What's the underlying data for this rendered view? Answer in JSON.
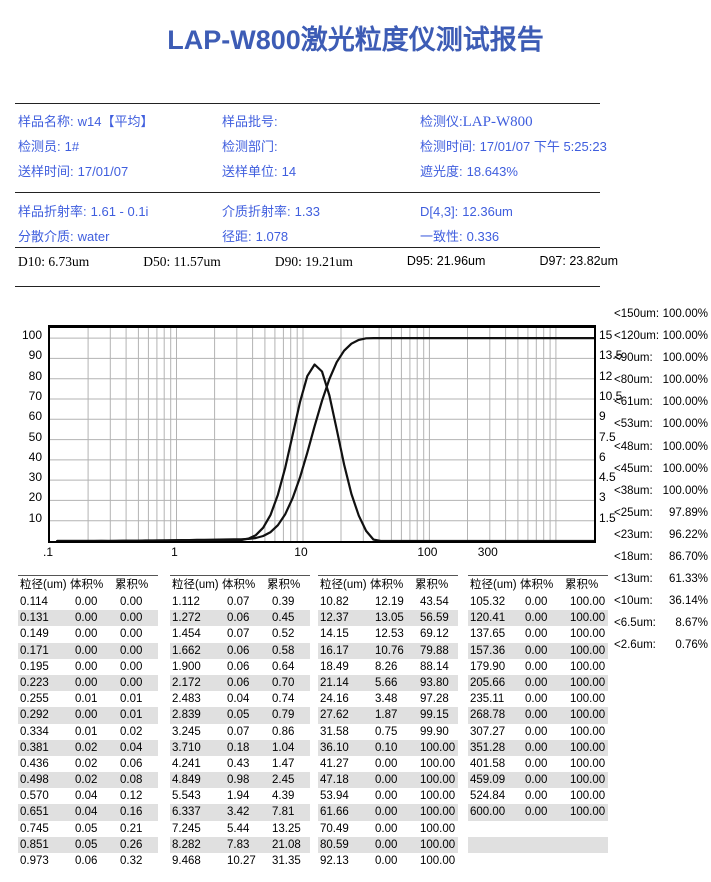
{
  "title": "LAP-W800激光粒度仪测试报告",
  "colors": {
    "title_blue": "#3d5cb5",
    "info_blue": "#3f5ede",
    "stripe_gray": "#e0e0e0"
  },
  "info1": [
    {
      "items": [
        {
          "label": "样品名称:",
          "value": "w14【平均】"
        },
        {
          "label": "检测员:",
          "value": "1#"
        },
        {
          "label": "送样时间:",
          "value": "17/01/07"
        }
      ]
    },
    {
      "items": [
        {
          "label": "样品批号:",
          "value": ""
        },
        {
          "label": "检测部门:",
          "value": ""
        },
        {
          "label": "送样单位:",
          "value": "14"
        }
      ]
    },
    {
      "items": [
        {
          "label": "检测仪:",
          "value": "LAP-W800"
        },
        {
          "label": "检测时间:",
          "value": "17/01/07 下午 5:25:23"
        },
        {
          "label": "遮光度:",
          "value": "18.643%"
        }
      ]
    }
  ],
  "info2": [
    {
      "items": [
        {
          "label": "样品折射率:",
          "value": "1.61 - 0.1i"
        },
        {
          "label": "分散介质:",
          "value": "water"
        }
      ]
    },
    {
      "items": [
        {
          "label": "介质折射率:",
          "value": "1.33"
        },
        {
          "label": "径距:",
          "value": "1.078"
        }
      ]
    },
    {
      "items": [
        {
          "label": "D[4,3]:",
          "value": "12.36um"
        },
        {
          "label": "一致性:",
          "value": "0.336"
        }
      ]
    }
  ],
  "d_values": [
    {
      "label": "D10:",
      "value": "6.73um"
    },
    {
      "label": "D50:",
      "value": "11.57um"
    },
    {
      "label": "D90:",
      "value": "19.21um"
    },
    {
      "label": "D95:",
      "value": "21.96um"
    },
    {
      "label": "D97:",
      "value": "23.82um"
    }
  ],
  "thresholds": [
    {
      "label": "<150um:",
      "value": "100.00%"
    },
    {
      "label": "<120um:",
      "value": "100.00%"
    },
    {
      "label": "<90um:",
      "value": "100.00%"
    },
    {
      "label": "<80um:",
      "value": "100.00%"
    },
    {
      "label": "<61um:",
      "value": "100.00%"
    },
    {
      "label": "<53um:",
      "value": "100.00%"
    },
    {
      "label": "<48um:",
      "value": "100.00%"
    },
    {
      "label": "<45um:",
      "value": "100.00%"
    },
    {
      "label": "<38um:",
      "value": "100.00%"
    },
    {
      "label": "<25um:",
      "value": "97.89%"
    },
    {
      "label": "<23um:",
      "value": "96.22%"
    },
    {
      "label": "<18um:",
      "value": "86.70%"
    },
    {
      "label": "<13um:",
      "value": "61.33%"
    },
    {
      "label": "<10um:",
      "value": "36.14%"
    },
    {
      "label": "<6.5um:",
      "value": "8.67%"
    },
    {
      "label": "<2.6um:",
      "value": "0.76%"
    }
  ],
  "chart_data": {
    "type": "line",
    "x_scale": "log",
    "x_range": [
      0.1,
      2000
    ],
    "x_ticks": [
      {
        "label": ".1",
        "value": 0.1
      },
      {
        "label": "1",
        "value": 1
      },
      {
        "label": "10",
        "value": 10
      },
      {
        "label": "100",
        "value": 100
      },
      {
        "label": "300",
        "value": 300
      }
    ],
    "left_axis": {
      "ticks": [
        10,
        20,
        30,
        40,
        50,
        60,
        70,
        80,
        90,
        100
      ],
      "axis_max": 100,
      "plot_max": 105
    },
    "right_axis": {
      "ticks": [
        1.5,
        3,
        4.5,
        6,
        7.5,
        9,
        10.5,
        12,
        13.5,
        15
      ],
      "max": 15
    },
    "grid": true,
    "legend": "none",
    "colors": {
      "grid": "#b3b3b3",
      "curve": "#111111"
    },
    "series": [
      {
        "name": "cumulative-percent",
        "axis": "left",
        "value_key": "cumulative",
        "extend_right": true
      },
      {
        "name": "volume-percent",
        "axis": "right",
        "value_key": "volume",
        "extend_right": true
      }
    ],
    "x": [
      0.114,
      0.131,
      0.149,
      0.171,
      0.195,
      0.223,
      0.255,
      0.292,
      0.334,
      0.381,
      0.436,
      0.498,
      0.57,
      0.651,
      0.745,
      0.851,
      0.973,
      1.112,
      1.272,
      1.454,
      1.662,
      1.9,
      2.172,
      2.483,
      2.839,
      3.245,
      3.71,
      4.241,
      4.849,
      5.543,
      6.337,
      7.245,
      8.282,
      9.468,
      10.82,
      12.37,
      14.15,
      16.17,
      18.49,
      21.14,
      24.16,
      27.62,
      31.58,
      36.1,
      41.27,
      47.18,
      53.94,
      61.66,
      70.49,
      80.59,
      92.13,
      105.32,
      120.41,
      137.65,
      157.36,
      179.9,
      205.66,
      235.11,
      268.78,
      307.27,
      351.28,
      401.58,
      459.09,
      524.84,
      600.0
    ],
    "volume": [
      0,
      0,
      0,
      0,
      0,
      0,
      0.01,
      0,
      0.01,
      0.02,
      0.02,
      0.02,
      0.04,
      0.04,
      0.05,
      0.05,
      0.06,
      0.07,
      0.06,
      0.07,
      0.06,
      0.06,
      0.06,
      0.04,
      0.05,
      0.07,
      0.18,
      0.43,
      0.98,
      1.94,
      3.42,
      5.44,
      7.83,
      10.27,
      12.19,
      13.05,
      12.53,
      10.76,
      8.26,
      5.66,
      3.48,
      1.87,
      0.75,
      0.1,
      0,
      0,
      0,
      0,
      0,
      0,
      0,
      0,
      0,
      0,
      0,
      0,
      0,
      0,
      0,
      0,
      0,
      0,
      0,
      0,
      0
    ],
    "cumulative": [
      0,
      0,
      0,
      0,
      0,
      0,
      0.01,
      0.01,
      0.02,
      0.04,
      0.06,
      0.08,
      0.12,
      0.16,
      0.21,
      0.26,
      0.32,
      0.39,
      0.45,
      0.52,
      0.58,
      0.64,
      0.7,
      0.74,
      0.79,
      0.86,
      1.04,
      1.47,
      2.45,
      4.39,
      7.81,
      13.25,
      21.08,
      31.35,
      43.54,
      56.59,
      69.12,
      79.88,
      88.14,
      93.8,
      97.28,
      99.15,
      99.9,
      100,
      100,
      100,
      100,
      100,
      100,
      100,
      100,
      100,
      100,
      100,
      100,
      100,
      100,
      100,
      100,
      100,
      100,
      100,
      100,
      100,
      100
    ]
  },
  "table": {
    "headers": [
      "粒径(um)",
      "体积%",
      "累积%"
    ],
    "row_count": 17,
    "groups": [
      [
        [
          "0.114",
          "0.00",
          "0.00"
        ],
        [
          "0.131",
          "0.00",
          "0.00"
        ],
        [
          "0.149",
          "0.00",
          "0.00"
        ],
        [
          "0.171",
          "0.00",
          "0.00"
        ],
        [
          "0.195",
          "0.00",
          "0.00"
        ],
        [
          "0.223",
          "0.00",
          "0.00"
        ],
        [
          "0.255",
          "0.01",
          "0.01"
        ],
        [
          "0.292",
          "0.00",
          "0.01"
        ],
        [
          "0.334",
          "0.01",
          "0.02"
        ],
        [
          "0.381",
          "0.02",
          "0.04"
        ],
        [
          "0.436",
          "0.02",
          "0.06"
        ],
        [
          "0.498",
          "0.02",
          "0.08"
        ],
        [
          "0.570",
          "0.04",
          "0.12"
        ],
        [
          "0.651",
          "0.04",
          "0.16"
        ],
        [
          "0.745",
          "0.05",
          "0.21"
        ],
        [
          "0.851",
          "0.05",
          "0.26"
        ],
        [
          "0.973",
          "0.06",
          "0.32"
        ]
      ],
      [
        [
          "1.112",
          "0.07",
          "0.39"
        ],
        [
          "1.272",
          "0.06",
          "0.45"
        ],
        [
          "1.454",
          "0.07",
          "0.52"
        ],
        [
          "1.662",
          "0.06",
          "0.58"
        ],
        [
          "1.900",
          "0.06",
          "0.64"
        ],
        [
          "2.172",
          "0.06",
          "0.70"
        ],
        [
          "2.483",
          "0.04",
          "0.74"
        ],
        [
          "2.839",
          "0.05",
          "0.79"
        ],
        [
          "3.245",
          "0.07",
          "0.86"
        ],
        [
          "3.710",
          "0.18",
          "1.04"
        ],
        [
          "4.241",
          "0.43",
          "1.47"
        ],
        [
          "4.849",
          "0.98",
          "2.45"
        ],
        [
          "5.543",
          "1.94",
          "4.39"
        ],
        [
          "6.337",
          "3.42",
          "7.81"
        ],
        [
          "7.245",
          "5.44",
          "13.25"
        ],
        [
          "8.282",
          "7.83",
          "21.08"
        ],
        [
          "9.468",
          "10.27",
          "31.35"
        ]
      ],
      [
        [
          "10.82",
          "12.19",
          "43.54"
        ],
        [
          "12.37",
          "13.05",
          "56.59"
        ],
        [
          "14.15",
          "12.53",
          "69.12"
        ],
        [
          "16.17",
          "10.76",
          "79.88"
        ],
        [
          "18.49",
          "8.26",
          "88.14"
        ],
        [
          "21.14",
          "5.66",
          "93.80"
        ],
        [
          "24.16",
          "3.48",
          "97.28"
        ],
        [
          "27.62",
          "1.87",
          "99.15"
        ],
        [
          "31.58",
          "0.75",
          "99.90"
        ],
        [
          "36.10",
          "0.10",
          "100.00"
        ],
        [
          "41.27",
          "0.00",
          "100.00"
        ],
        [
          "47.18",
          "0.00",
          "100.00"
        ],
        [
          "53.94",
          "0.00",
          "100.00"
        ],
        [
          "61.66",
          "0.00",
          "100.00"
        ],
        [
          "70.49",
          "0.00",
          "100.00"
        ],
        [
          "80.59",
          "0.00",
          "100.00"
        ],
        [
          "92.13",
          "0.00",
          "100.00"
        ]
      ],
      [
        [
          "105.32",
          "0.00",
          "100.00"
        ],
        [
          "120.41",
          "0.00",
          "100.00"
        ],
        [
          "137.65",
          "0.00",
          "100.00"
        ],
        [
          "157.36",
          "0.00",
          "100.00"
        ],
        [
          "179.90",
          "0.00",
          "100.00"
        ],
        [
          "205.66",
          "0.00",
          "100.00"
        ],
        [
          "235.11",
          "0.00",
          "100.00"
        ],
        [
          "268.78",
          "0.00",
          "100.00"
        ],
        [
          "307.27",
          "0.00",
          "100.00"
        ],
        [
          "351.28",
          "0.00",
          "100.00"
        ],
        [
          "401.58",
          "0.00",
          "100.00"
        ],
        [
          "459.09",
          "0.00",
          "100.00"
        ],
        [
          "524.84",
          "0.00",
          "100.00"
        ],
        [
          "600.00",
          "0.00",
          "100.00"
        ]
      ]
    ]
  }
}
